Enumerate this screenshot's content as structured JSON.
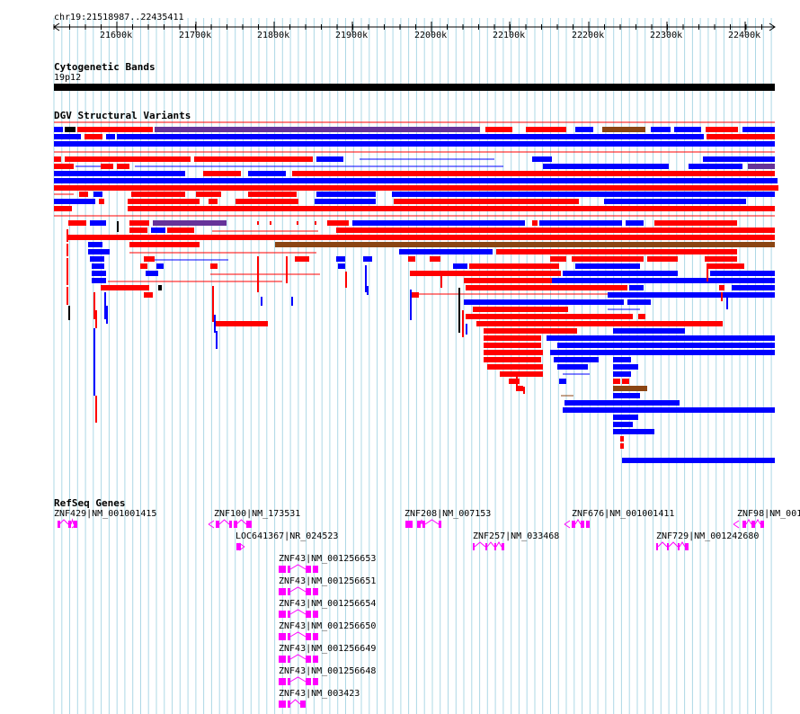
{
  "location": "chr19:21518987..22435411",
  "ruler": {
    "ticks": [
      "21600k",
      "21700k",
      "21800k",
      "21900k",
      "22000k",
      "22100k",
      "22200k",
      "22300k",
      "22400k"
    ]
  },
  "tracks": {
    "cytoband": {
      "title": "Cytogenetic Bands",
      "band_label": "19p12"
    },
    "dgv": {
      "title": "DGV Structural Variants"
    },
    "refseq": {
      "title": "RefSeq Genes"
    }
  },
  "genes": [
    "ZNF429|NM_001001415",
    "ZNF100|NM_173531",
    "LOC641367|NR_024523",
    "ZNF43|NM_001256653",
    "ZNF43|NM_001256651",
    "ZNF43|NM_001256654",
    "ZNF43|NM_001256650",
    "ZNF43|NM_001256649",
    "ZNF43|NM_001256648",
    "ZNF43|NM_003423",
    "ZNF208|NM_007153",
    "ZNF257|NM_033468",
    "ZNF676|NM_001001411",
    "ZNF729|NM_001242680",
    "ZNF98|NM_001"
  ],
  "colors": {
    "gain": "#ff0000",
    "loss": "#0000ff",
    "both": "#663399",
    "inversion": "#8b4513",
    "other": "#000000",
    "gene": "#ff00ff",
    "grid": "#add8e6"
  }
}
